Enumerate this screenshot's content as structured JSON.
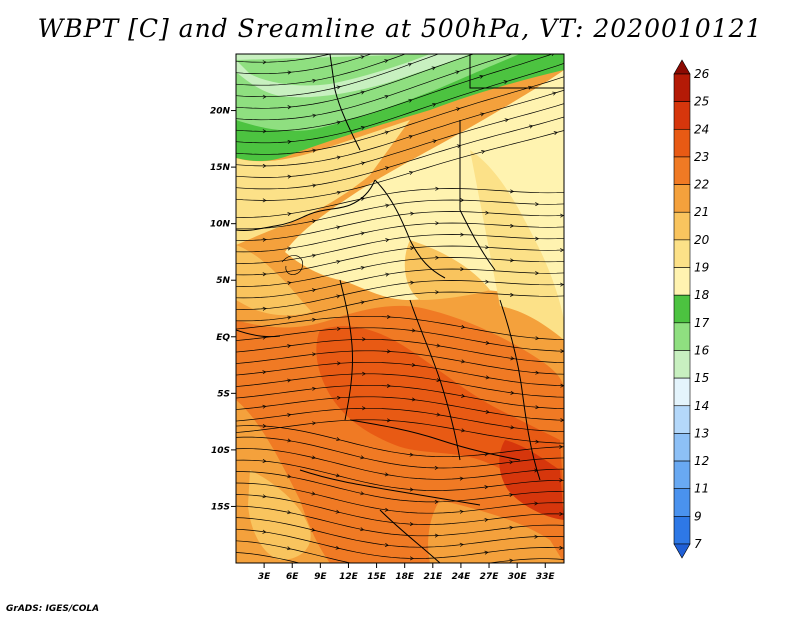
{
  "title": "WBPT [C] and Sreamline at 500hPa, VT: 2020010121",
  "credit": "GrADS: IGES/COLA",
  "map": {
    "lon_labels": [
      "3E",
      "6E",
      "9E",
      "12E",
      "15E",
      "18E",
      "21E",
      "24E",
      "27E",
      "30E",
      "33E"
    ],
    "lat_labels": [
      "20N",
      "15N",
      "10N",
      "5N",
      "EQ",
      "5S",
      "10S",
      "15S"
    ],
    "lon_range": [
      0,
      35
    ],
    "lat_range": [
      -20,
      25
    ],
    "colors": {
      "band_15_16": "#c8f0c0",
      "band_16_17": "#8fdf80",
      "band_17_18": "#4cc340",
      "band_18_19": "#fff3b0",
      "band_19_20": "#fce188",
      "band_20_21": "#f9c45e",
      "band_21_22": "#f4a13c",
      "band_22_23": "#f07a24",
      "band_23_24": "#e85a14",
      "band_24_25": "#d6360c"
    }
  },
  "colorbar": {
    "levels": [
      "7",
      "9",
      "11",
      "12",
      "13",
      "14",
      "15",
      "16",
      "17",
      "18",
      "19",
      "20",
      "21",
      "22",
      "23",
      "24",
      "25",
      "26"
    ],
    "colors": [
      "#1f5fd6",
      "#2e78e6",
      "#4a92ee",
      "#69a9f2",
      "#8dc0f6",
      "#b4d8fa",
      "#e4f4fc",
      "#c8f0c0",
      "#8fdf80",
      "#4cc340",
      "#fff3b0",
      "#fce188",
      "#f9c45e",
      "#f4a13c",
      "#f07a24",
      "#e85a14",
      "#d6360c",
      "#b41a06",
      "#8b0a02"
    ]
  }
}
